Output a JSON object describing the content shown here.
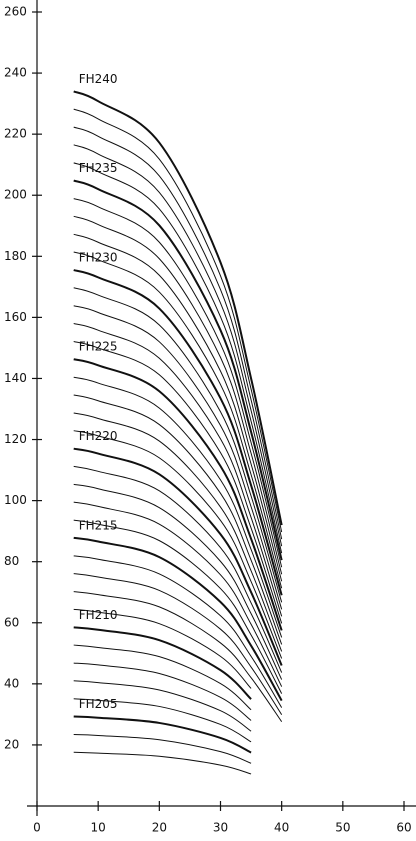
{
  "chart_data": {
    "type": "line",
    "x": [
      6,
      10,
      20,
      30,
      35,
      40
    ],
    "xlim": [
      0,
      60
    ],
    "xticks": [
      0,
      10,
      20,
      30,
      40,
      50,
      60
    ],
    "ylim": [
      0,
      260
    ],
    "yticks": [
      20,
      40,
      60,
      80,
      100,
      120,
      140,
      160,
      180,
      200,
      220,
      240,
      260
    ],
    "color": "#111111",
    "series": [
      {
        "values": [
          17.6,
          17.3,
          16.3,
          13.4,
          10.5,
          null
        ]
      },
      {
        "values": [
          23.4,
          23.1,
          21.7,
          17.8,
          14,
          null
        ]
      },
      {
        "name": "FH205",
        "values": [
          29.3,
          28.9,
          27.2,
          22.3,
          17.5,
          null
        ]
      },
      {
        "values": [
          35.1,
          34.6,
          32.6,
          26.7,
          21,
          null
        ]
      },
      {
        "values": [
          41,
          40.4,
          38,
          31.2,
          24.5,
          null
        ]
      },
      {
        "values": [
          46.8,
          46.2,
          43.4,
          35.6,
          28,
          null
        ]
      },
      {
        "values": [
          52.7,
          51.9,
          48.9,
          40.1,
          31.5,
          null
        ]
      },
      {
        "name": "FH210",
        "values": [
          58.5,
          57.7,
          54.3,
          44.5,
          35,
          null
        ]
      },
      {
        "values": [
          64.4,
          63.5,
          59.7,
          49,
          38.5,
          null
        ]
      },
      {
        "values": [
          70.2,
          69.2,
          65.2,
          53.4,
          42,
          27.6
        ]
      },
      {
        "values": [
          76.1,
          75,
          70.6,
          57.9,
          45.5,
          29.9
        ]
      },
      {
        "values": [
          81.9,
          80.8,
          76,
          62.3,
          49,
          32.2
        ]
      },
      {
        "name": "FH215",
        "values": [
          87.8,
          86.6,
          81.5,
          66.8,
          52.5,
          34.5
        ]
      },
      {
        "values": [
          93.6,
          92.3,
          86.9,
          71.2,
          56,
          36.8
        ]
      },
      {
        "values": [
          99.5,
          98.1,
          92.3,
          75.7,
          59.5,
          39.1
        ]
      },
      {
        "values": [
          105.3,
          103.9,
          97.7,
          80.1,
          63,
          41.4
        ]
      },
      {
        "values": [
          111.2,
          109.6,
          103.2,
          84.6,
          66.5,
          43.7
        ]
      },
      {
        "name": "FH220",
        "values": [
          117,
          115.4,
          108.6,
          89,
          70,
          46
        ]
      },
      {
        "values": [
          122.9,
          121.2,
          114,
          93.5,
          73.5,
          48.3
        ]
      },
      {
        "values": [
          128.7,
          126.9,
          119.5,
          97.9,
          77,
          50.6
        ]
      },
      {
        "values": [
          134.6,
          132.7,
          124.9,
          102.4,
          80.5,
          52.9
        ]
      },
      {
        "values": [
          140.4,
          138.5,
          130.3,
          106.8,
          84,
          55.2
        ]
      },
      {
        "name": "FH225",
        "values": [
          146.3,
          144.3,
          135.8,
          111.3,
          87.5,
          57.5
        ]
      },
      {
        "values": [
          152.1,
          150,
          141.2,
          115.7,
          91,
          59.8
        ]
      },
      {
        "values": [
          158,
          155.8,
          146.6,
          120.2,
          94.5,
          62.1
        ]
      },
      {
        "values": [
          163.8,
          161.6,
          152,
          124.6,
          98,
          64.4
        ]
      },
      {
        "values": [
          169.7,
          167.3,
          157.5,
          129.1,
          101.5,
          66.7
        ]
      },
      {
        "name": "FH230",
        "values": [
          175.5,
          173.1,
          162.9,
          133.5,
          105,
          69
        ]
      },
      {
        "values": [
          181.4,
          178.9,
          168.3,
          138,
          108.5,
          71.3
        ]
      },
      {
        "values": [
          187.2,
          184.6,
          173.8,
          142.4,
          112,
          73.6
        ]
      },
      {
        "values": [
          193.1,
          190.4,
          179.2,
          146.9,
          115.5,
          75.9
        ]
      },
      {
        "values": [
          198.9,
          196.2,
          184.6,
          151.3,
          119,
          78.2
        ]
      },
      {
        "name": "FH235",
        "values": [
          204.8,
          202,
          190.1,
          155.8,
          122.5,
          80.5
        ]
      },
      {
        "values": [
          210.6,
          207.7,
          195.5,
          160.2,
          126,
          82.8
        ]
      },
      {
        "values": [
          216.5,
          213.5,
          200.9,
          164.7,
          129.5,
          85.1
        ]
      },
      {
        "values": [
          222.3,
          219.3,
          206.3,
          169.1,
          133,
          87.4
        ]
      },
      {
        "values": [
          228.2,
          225,
          211.8,
          173.6,
          136.5,
          89.7
        ]
      },
      {
        "name": "FH240",
        "values": [
          234,
          230.8,
          217.2,
          178,
          140,
          92
        ]
      }
    ]
  }
}
